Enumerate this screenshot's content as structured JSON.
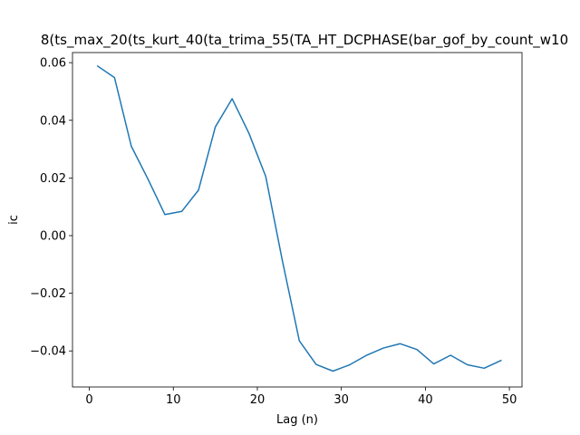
{
  "chart_data": {
    "type": "line",
    "title": "8(ts_max_20(ts_kurt_40(ta_trima_55(TA_HT_DCPHASE(bar_gof_by_count_w10",
    "xlabel": "Lag (n)",
    "ylabel": "ic",
    "xlim": [
      -2,
      51.5
    ],
    "ylim": [
      -0.0525,
      0.0635
    ],
    "xticks": [
      0,
      10,
      20,
      30,
      40,
      50
    ],
    "xtick_labels": [
      "0",
      "10",
      "20",
      "30",
      "40",
      "50"
    ],
    "yticks": [
      -0.04,
      -0.02,
      0.0,
      0.02,
      0.04,
      0.06
    ],
    "ytick_labels": [
      "−0.04",
      "−0.02",
      "0.00",
      "0.02",
      "0.04",
      "0.06"
    ],
    "grid": false,
    "series": [
      {
        "color": "#1f77b4",
        "x": [
          1,
          3,
          5,
          7,
          9,
          11,
          13,
          15,
          17,
          19,
          21,
          23,
          25,
          27,
          29,
          31,
          33,
          35,
          37,
          39,
          41,
          43,
          45,
          47,
          49
        ],
        "y": [
          0.0588,
          0.0548,
          0.031,
          0.0195,
          0.0073,
          0.0084,
          0.0158,
          0.0377,
          0.0475,
          0.0355,
          0.0205,
          -0.009,
          -0.0365,
          -0.0447,
          -0.047,
          -0.0448,
          -0.0415,
          -0.039,
          -0.0375,
          -0.0395,
          -0.0445,
          -0.0415,
          -0.0448,
          -0.046,
          -0.0433
        ]
      }
    ]
  }
}
